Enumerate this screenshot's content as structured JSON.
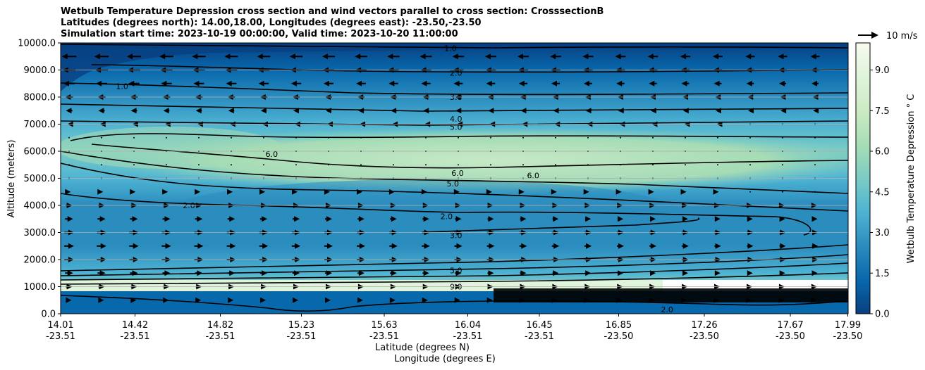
{
  "title": {
    "line1": "Wetbulb Temperature Depression cross section and wind vectors parallel to cross section: CrosssectionB",
    "line2": "Latitudes (degrees north): 14.00,18.00, Longitudes (degrees east): -23.50,-23.50",
    "line3": "Simulation start time: 2023-10-19 00:00:00, Valid time: 2023-10-20 11:00:00"
  },
  "chart_data": {
    "type": "heatmap",
    "ylabel": "Altitude (meters)",
    "xlabel": "Latitude (degrees N)",
    "xlabel2": "Longitude (degrees E)",
    "ylim": [
      0,
      10000
    ],
    "yticks": [
      "0.0",
      "1000.0",
      "2000.0",
      "3000.0",
      "4000.0",
      "5000.0",
      "6000.0",
      "7000.0",
      "8000.0",
      "9000.0",
      "10000.0"
    ],
    "xticks": [
      {
        "lat": "14.01",
        "lon": "-23.51"
      },
      {
        "lat": "14.42",
        "lon": "-23.51"
      },
      {
        "lat": "14.82",
        "lon": "-23.51"
      },
      {
        "lat": "15.23",
        "lon": "-23.51"
      },
      {
        "lat": "15.63",
        "lon": "-23.51"
      },
      {
        "lat": "16.04",
        "lon": "-23.51"
      },
      {
        "lat": "16.45",
        "lon": "-23.51"
      },
      {
        "lat": "16.85",
        "lon": "-23.50"
      },
      {
        "lat": "17.26",
        "lon": "-23.50"
      },
      {
        "lat": "17.67",
        "lon": "-23.50"
      },
      {
        "lat": "17.99",
        "lon": "-23.50"
      }
    ],
    "colorbar": {
      "label": "Wetbulb Temperature Depression $^\\circ$C",
      "ticks": [
        "0.0",
        "1.5",
        "3.0",
        "4.5",
        "6.0",
        "7.5",
        "9.0"
      ],
      "range": [
        0,
        10
      ],
      "colormap": [
        "#084081",
        "#0868ac",
        "#2b8cbe",
        "#4eb3d3",
        "#7bccc4",
        "#a8ddb5",
        "#ccebc5",
        "#e0f3db",
        "#f7fcf0"
      ]
    },
    "contour_labels": [
      {
        "text": "1.0",
        "x": 0.495,
        "alt": 9800
      },
      {
        "text": "2.0",
        "x": 0.502,
        "alt": 8900
      },
      {
        "text": "3.0",
        "x": 0.502,
        "alt": 8000
      },
      {
        "text": "4.0",
        "x": 0.502,
        "alt": 7200
      },
      {
        "text": "5.0",
        "x": 0.502,
        "alt": 6900
      },
      {
        "text": "6.0",
        "x": 0.504,
        "alt": 5200
      },
      {
        "text": "6.0",
        "x": 0.6,
        "alt": 5100
      },
      {
        "text": "5.0",
        "x": 0.498,
        "alt": 4800
      },
      {
        "text": "6.0",
        "x": 0.268,
        "alt": 5900
      },
      {
        "text": "2.0",
        "x": 0.163,
        "alt": 4000
      },
      {
        "text": "2.0",
        "x": 0.49,
        "alt": 3600
      },
      {
        "text": "3.0",
        "x": 0.502,
        "alt": 2900
      },
      {
        "text": "5.0",
        "x": 0.502,
        "alt": 1600
      },
      {
        "text": "9.0",
        "x": 0.502,
        "alt": 1000
      },
      {
        "text": "1.0",
        "x": 0.078,
        "alt": 8400
      },
      {
        "text": "2.0",
        "x": 0.77,
        "alt": 150
      }
    ],
    "wind_reference": {
      "label": "10 m/s",
      "speed": 10
    },
    "wind_rows": [
      {
        "alt": 9500,
        "u": -9
      },
      {
        "alt": 9000,
        "u": -8
      },
      {
        "alt": 8500,
        "u": -7
      },
      {
        "alt": 8000,
        "u": -5
      },
      {
        "alt": 7500,
        "u": -4
      },
      {
        "alt": 7000,
        "u": -2
      },
      {
        "alt": 6500,
        "u": -1
      },
      {
        "alt": 6000,
        "u": 0
      },
      {
        "alt": 5500,
        "u": 0
      },
      {
        "alt": 5000,
        "u": 0
      },
      {
        "alt": 4500,
        "u": 2
      },
      {
        "alt": 4000,
        "u": 4
      },
      {
        "alt": 3500,
        "u": 5
      },
      {
        "alt": 3000,
        "u": 6
      },
      {
        "alt": 2500,
        "u": 6
      },
      {
        "alt": 2000,
        "u": 6
      },
      {
        "alt": 1500,
        "u": 5
      },
      {
        "alt": 1000,
        "u": 4
      },
      {
        "alt": 500,
        "u": 3
      }
    ]
  }
}
